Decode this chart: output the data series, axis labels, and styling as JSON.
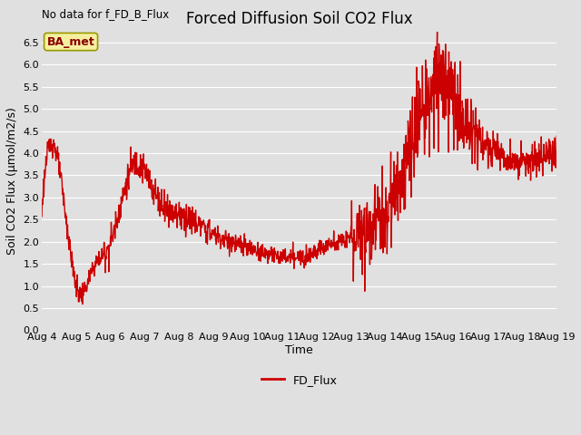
{
  "title": "Forced Diffusion Soil CO2 Flux",
  "xlabel": "Time",
  "ylabel": "Soil CO2 Flux (μmol/m2/s)",
  "ylim": [
    0.0,
    6.75
  ],
  "yticks": [
    0.0,
    0.5,
    1.0,
    1.5,
    2.0,
    2.5,
    3.0,
    3.5,
    4.0,
    4.5,
    5.0,
    5.5,
    6.0,
    6.5
  ],
  "line_color": "#cc0000",
  "line_width": 1.0,
  "legend_label": "FD_Flux",
  "no_data_label": "No data for f_FD_B_Flux",
  "ba_met_label": "BA_met",
  "bg_color": "#e0e0e0",
  "plot_bg_color": "#e0e0e0",
  "grid_color": "#ffffff",
  "ctrl_t": [
    0,
    0.03,
    0.07,
    0.1,
    0.13,
    0.18,
    0.22,
    0.27,
    0.33,
    0.4,
    0.45,
    0.5,
    0.55,
    0.6,
    0.65,
    0.7,
    0.74,
    0.78,
    0.82,
    0.87,
    0.92,
    0.97,
    1.0
  ],
  "ctrl_v": [
    2.7,
    3.9,
    0.9,
    1.4,
    1.9,
    3.75,
    3.1,
    2.6,
    2.2,
    1.85,
    1.7,
    1.65,
    1.9,
    2.1,
    2.55,
    3.5,
    5.0,
    5.7,
    4.8,
    4.1,
    3.8,
    3.85,
    4.0
  ],
  "noise_seed": 123,
  "n_points": 1500,
  "title_fontsize": 12,
  "label_fontsize": 9,
  "tick_fontsize": 8
}
